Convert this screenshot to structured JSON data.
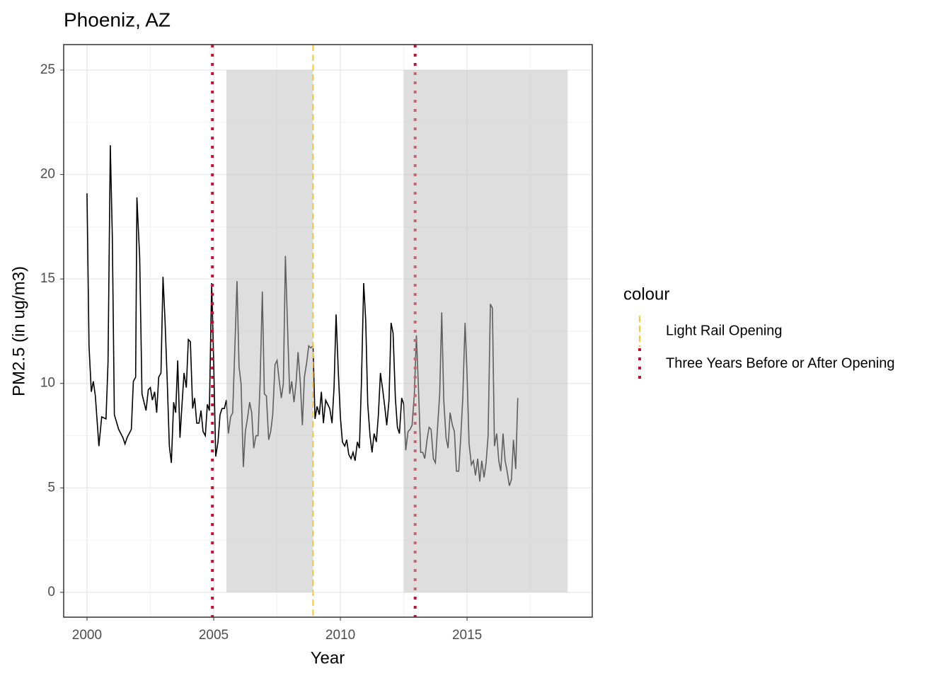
{
  "chart_data": {
    "type": "line",
    "title": "Phoeniz, AZ",
    "x_label": "Year",
    "y_label": "PM2.5 (in ug/m3)",
    "xlim": [
      1999.08,
      2019.94
    ],
    "ylim": [
      -1.19,
      26.22
    ],
    "xticks": [
      2000,
      2005,
      2010,
      2015
    ],
    "yticks": [
      0,
      5,
      10,
      15,
      20,
      25
    ],
    "grid": true,
    "series": [
      {
        "color": "#000000",
        "x": [
          2000.0,
          2000.08,
          2000.17,
          2000.25,
          2000.33,
          2000.47,
          2000.58,
          2000.75,
          2000.83,
          2000.92,
          2001.0,
          2001.08,
          2001.25,
          2001.42,
          2001.5,
          2001.58,
          2001.75,
          2001.83,
          2001.92,
          2001.97,
          2002.08,
          2002.17,
          2002.33,
          2002.42,
          2002.5,
          2002.58,
          2002.67,
          2002.75,
          2002.83,
          2002.92,
          2003.0,
          2003.08,
          2003.17,
          2003.25,
          2003.33,
          2003.42,
          2003.5,
          2003.58,
          2003.67,
          2003.75,
          2003.83,
          2003.92,
          2004.0,
          2004.08,
          2004.17,
          2004.25,
          2004.33,
          2004.42,
          2004.5,
          2004.58,
          2004.67,
          2004.75,
          2004.83,
          2004.92,
          2005.0,
          2005.08,
          2005.17,
          2005.25,
          2005.33,
          2005.42,
          2005.5,
          2005.58,
          2005.67,
          2005.75,
          2005.83,
          2005.92,
          2006.0,
          2006.08,
          2006.17,
          2006.25,
          2006.33,
          2006.42,
          2006.5,
          2006.58,
          2006.67,
          2006.75,
          2006.83,
          2006.92,
          2007.0,
          2007.08,
          2007.17,
          2007.25,
          2007.33,
          2007.42,
          2007.5,
          2007.58,
          2007.67,
          2007.75,
          2007.83,
          2007.92,
          2008.0,
          2008.08,
          2008.17,
          2008.25,
          2008.33,
          2008.42,
          2008.5,
          2008.58,
          2008.67,
          2008.75,
          2008.83,
          2008.92,
          2009.0,
          2009.08,
          2009.17,
          2009.25,
          2009.33,
          2009.42,
          2009.5,
          2009.58,
          2009.67,
          2009.75,
          2009.83,
          2009.92,
          2010.0,
          2010.08,
          2010.17,
          2010.25,
          2010.33,
          2010.42,
          2010.5,
          2010.58,
          2010.67,
          2010.75,
          2010.83,
          2010.92,
          2011.0,
          2011.08,
          2011.17,
          2011.25,
          2011.33,
          2011.42,
          2011.5,
          2011.58,
          2011.67,
          2011.75,
          2011.83,
          2011.92,
          2012.0,
          2012.08,
          2012.17,
          2012.25,
          2012.33,
          2012.42,
          2012.5,
          2012.58,
          2012.67,
          2012.75,
          2012.83,
          2012.92,
          2013.0,
          2013.08,
          2013.17,
          2013.25,
          2013.33,
          2013.42,
          2013.5,
          2013.58,
          2013.67,
          2013.75,
          2013.83,
          2013.92,
          2014.0,
          2014.08,
          2014.17,
          2014.25,
          2014.33,
          2014.42,
          2014.5,
          2014.58,
          2014.67,
          2014.75,
          2014.83,
          2014.92,
          2015.0,
          2015.08,
          2015.17,
          2015.25,
          2015.33,
          2015.42,
          2015.5,
          2015.58,
          2015.67,
          2015.75,
          2015.83,
          2015.92,
          2016.0,
          2016.08,
          2016.17,
          2016.25,
          2016.33,
          2016.42,
          2016.5,
          2016.58,
          2016.67,
          2016.75,
          2016.83,
          2016.92,
          2017.0
        ],
        "values": [
          19.1,
          11.8,
          9.6,
          10.1,
          9.4,
          7.0,
          8.4,
          8.3,
          11.0,
          21.4,
          17.0,
          8.5,
          7.8,
          7.4,
          7.1,
          7.4,
          7.8,
          10.1,
          10.3,
          18.9,
          16.0,
          9.5,
          8.7,
          9.7,
          9.8,
          9.2,
          9.6,
          8.6,
          10.3,
          10.5,
          15.1,
          13.0,
          10.0,
          7.0,
          6.2,
          9.1,
          8.6,
          11.1,
          7.4,
          9.0,
          10.5,
          9.8,
          12.1,
          12.0,
          8.8,
          9.3,
          8.1,
          8.1,
          8.7,
          7.7,
          7.5,
          9.0,
          8.7,
          14.8,
          11.0,
          6.5,
          7.2,
          8.5,
          8.8,
          8.8,
          9.2,
          7.6,
          8.4,
          8.6,
          11.5,
          14.9,
          10.8,
          10.0,
          6.0,
          7.7,
          8.3,
          9.1,
          8.6,
          6.9,
          7.5,
          7.5,
          10.0,
          14.4,
          9.5,
          9.4,
          7.3,
          7.7,
          8.5,
          10.9,
          11.1,
          10.2,
          9.3,
          10.0,
          16.1,
          12.5,
          9.5,
          10.1,
          9.1,
          10.0,
          11.5,
          10.0,
          8.0,
          10.3,
          11.0,
          11.8,
          11.7,
          11.8,
          8.3,
          8.9,
          8.5,
          9.6,
          8.1,
          9.2,
          9.0,
          8.8,
          8.1,
          9.8,
          13.3,
          10.5,
          8.4,
          7.2,
          7.0,
          7.3,
          6.6,
          6.4,
          6.7,
          6.3,
          7.2,
          6.9,
          10.0,
          14.8,
          13.0,
          9.0,
          7.5,
          6.7,
          7.6,
          7.2,
          8.5,
          10.5,
          9.7,
          8.9,
          8.0,
          9.2,
          12.9,
          12.4,
          9.3,
          7.9,
          7.6,
          9.3,
          9.0,
          6.8,
          7.7,
          7.8,
          8.0,
          9.5,
          12.3,
          9.8,
          6.7,
          6.7,
          6.4,
          7.3,
          7.9,
          7.8,
          6.4,
          6.2,
          7.8,
          9.5,
          13.4,
          9.2,
          7.4,
          6.9,
          8.6,
          8.0,
          7.7,
          5.8,
          5.8,
          7.4,
          9.3,
          12.9,
          10.4,
          7.1,
          6.1,
          6.3,
          5.6,
          6.4,
          5.3,
          6.3,
          5.5,
          6.2,
          7.5,
          13.8,
          13.6,
          7.0,
          7.6,
          6.3,
          5.8,
          7.6,
          6.3,
          5.8,
          5.1,
          5.4,
          7.3,
          5.9,
          9.3
        ]
      }
    ],
    "shaded_regions": [
      {
        "xmin": 2005.5,
        "xmax": 2008.92,
        "ymin": 0,
        "ymax": 25,
        "color": "#bebebe"
      },
      {
        "xmin": 2012.5,
        "xmax": 2018.97,
        "ymin": 0,
        "ymax": 25,
        "color": "#bebebe"
      }
    ],
    "legend_title": "colour",
    "vlines": [
      {
        "name": "Light Rail Opening",
        "x": [
          2008.92
        ],
        "color": "#ffc72c",
        "style": "dashed"
      },
      {
        "name": "Three Years Before or After Opening",
        "x": [
          2004.95,
          2012.95
        ],
        "color": "#c8102e",
        "style": "dotted"
      }
    ]
  }
}
